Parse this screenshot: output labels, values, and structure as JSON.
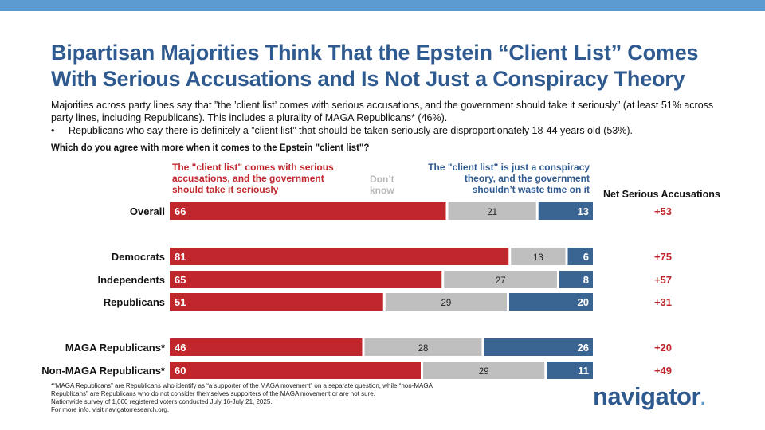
{
  "title_line1": "Bipartisan Majorities Think That the Epstein “Client List” Comes",
  "title_line2": "With Serious Accusations and Is Not Just a Conspiracy Theory",
  "subtitle": "Majorities across party lines say that ”the ’client list’ comes with serious accusations, and the government should take it seriously” (at least 51% across party lines, including Republicans). This includes a plurality of MAGA Republicans* (46%).",
  "bullet_symbol": "•",
  "bullet": "Republicans who say there is definitely a ”client list” that should be taken seriously are disproportionately 18-44 years old (53%).",
  "question": "Which do you agree with more when it comes to the Epstein \"client list\"?",
  "headers": {
    "serious": "The \"client list\" comes with serious accusations, and the government should take it seriously",
    "dont_know": "Don’t know",
    "conspiracy": "The \"client list\" is just a conspiracy theory, and the government shouldn’t waste time on it",
    "net": "Net Serious Accusations"
  },
  "colors": {
    "serious": "#c0272d",
    "dont_know": "#bfbfbf",
    "conspiracy": "#3a6592",
    "title": "#2f5a8f",
    "topbar": "#5b9bd1"
  },
  "chart_data": {
    "type": "bar",
    "orientation": "horizontal",
    "stacked": true,
    "categories": [
      "Overall",
      "Democrats",
      "Independents",
      "Republicans",
      "MAGA Republicans*",
      "Non-MAGA Republicans*"
    ],
    "series": [
      {
        "name": "The \"client list\" comes with serious accusations, and the government should take it seriously",
        "values": [
          66,
          81,
          65,
          51,
          46,
          60
        ]
      },
      {
        "name": "Don’t know",
        "values": [
          21,
          13,
          27,
          29,
          28,
          29
        ]
      },
      {
        "name": "The \"client list\" is just a conspiracy theory, and the government shouldn’t waste time on it",
        "values": [
          13,
          6,
          8,
          20,
          26,
          11
        ]
      }
    ],
    "net": [
      "+53",
      "+75",
      "+57",
      "+31",
      "+20",
      "+49"
    ],
    "xlim": [
      0,
      100
    ]
  },
  "footnote_lines": [
    "*“MAGA Republicans” are Republicans who identify as “a supporter of the MAGA movement” on a separate question, while “non-MAGA",
    "Republicans” are Republicans who do not consider themselves supporters of the MAGA movement or are not sure.",
    "Nationwide survey of 1,000 registered voters conducted July 16-July 21, 2025.",
    "For more info, visit navigatorresearch.org."
  ],
  "logo_text": "navigator",
  "logo_dot": "."
}
